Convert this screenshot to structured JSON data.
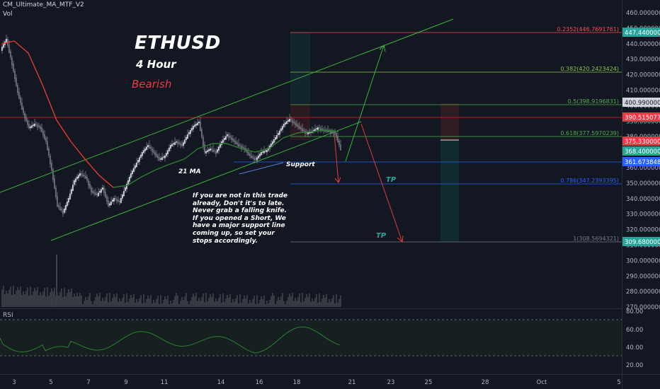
{
  "header": {
    "indicator": "CM_Ultimate_MA_MTF_V2",
    "volume": "Vol"
  },
  "annotations": {
    "symbol": "ETHUSD",
    "timeframe": "4 Hour",
    "bias": "Bearish",
    "ma_label": "21 MA",
    "support_label": "Support",
    "tp1": "TP",
    "tp2": "TP",
    "note": "If you are not in this trade already, Don't it's to late. Never grab a falling knife. If you opened a Short, We have a major support line coming up, so set your stops accordingly."
  },
  "price_axis": {
    "ticks": [
      "460.0000000",
      "450.0000000",
      "440.0000000",
      "430.0000000",
      "420.0000000",
      "410.0000000",
      "400.0000000",
      "390.0000000",
      "380.0000000",
      "370.0000000",
      "360.0000000",
      "350.0000000",
      "340.0000000",
      "330.0000000",
      "320.0000000",
      "310.0000000",
      "300.0000000",
      "290.0000000",
      "280.0000000",
      "270.0000000"
    ]
  },
  "rsi_axis": {
    "label": "RSI",
    "ticks": [
      "80.00",
      "60.00",
      "40.00",
      "20.00"
    ]
  },
  "time_axis": {
    "ticks": [
      "3",
      "5",
      "7",
      "9",
      "11",
      "14",
      "16",
      "18",
      "21",
      "23",
      "25",
      "28",
      "Oct",
      "5"
    ]
  },
  "price_tags": [
    {
      "text": "447.4400000",
      "color": "#26a69a"
    },
    {
      "text": "400.9900000",
      "color": "#d1d4dc"
    },
    {
      "text": "390.5150775",
      "color": "#f23645"
    },
    {
      "text": "375.3300000",
      "color": "#f23645"
    },
    {
      "text": "368.4000000",
      "color": "#26a69a"
    },
    {
      "text": "361.6738481",
      "color": "#2962ff"
    },
    {
      "text": "309.6800000",
      "color": "#26a69a"
    }
  ],
  "fib_levels": [
    {
      "text": "0.2352(446.7691761)",
      "color": "#ef5350"
    },
    {
      "text": "0.382(420.2423424)",
      "color": "#8bc34a"
    },
    {
      "text": "0.5(398.9196831)",
      "color": "#4caf50"
    },
    {
      "text": "0.618(377.5970239)",
      "color": "#4caf50"
    },
    {
      "text": "0.786(347.2393395)",
      "color": "#2962ff"
    },
    {
      "text": "1(308.5694321)",
      "color": "#787b86"
    }
  ],
  "colors": {
    "background": "#131722",
    "bull": "#b2b5be",
    "bear": "#b2b5be",
    "ma": "#e53935",
    "channel": "#3bb33b",
    "fib_green": "#4caf50"
  }
}
